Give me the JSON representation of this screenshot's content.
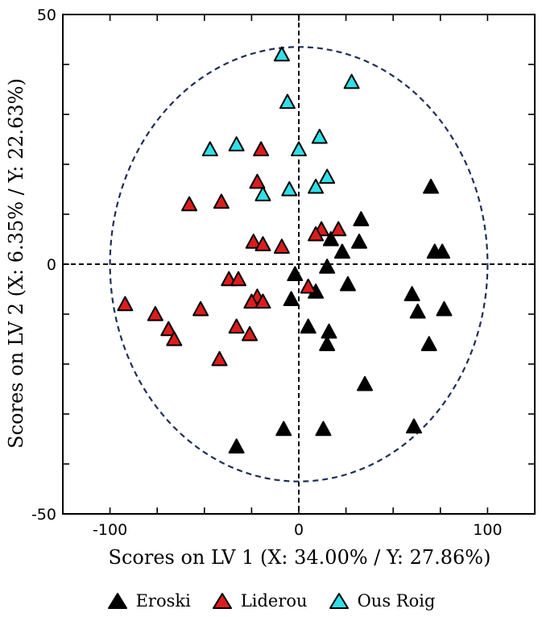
{
  "chart_data": {
    "type": "scatter",
    "xlabel": "Scores on LV 1 (X: 34.00% / Y: 27.86%)",
    "ylabel": "Scores on LV 2 (X: 6.35% / Y: 22.63%)",
    "xlim": [
      -125,
      125
    ],
    "ylim": [
      -50,
      50
    ],
    "xticks": [
      -100,
      0,
      100
    ],
    "yticks": [
      -50,
      0,
      50
    ],
    "x_tick_labels": [
      "-100",
      "0",
      "100"
    ],
    "y_tick_labels": [
      "-50",
      "0",
      "50"
    ],
    "confidence_ellipse": {
      "center": [
        0,
        0
      ],
      "x_radius": 100,
      "y_radius": 43.5,
      "style": "dashed",
      "color": "#1f2f57"
    },
    "reference_lines": {
      "x": 0,
      "y": 0,
      "style": "dashed"
    },
    "grid": false,
    "legend_position": "bottom",
    "series": [
      {
        "name": "Eroski",
        "color": "#000000",
        "marker": "triangle",
        "points": [
          [
            70,
            15.5
          ],
          [
            72,
            2.5
          ],
          [
            76,
            2.5
          ],
          [
            33,
            9
          ],
          [
            32,
            4.5
          ],
          [
            23,
            2.5
          ],
          [
            17,
            5
          ],
          [
            15,
            -0.5
          ],
          [
            26,
            -4
          ],
          [
            -2,
            -2
          ],
          [
            9,
            -5.5
          ],
          [
            -4,
            -7
          ],
          [
            60,
            -6
          ],
          [
            63,
            -9.5
          ],
          [
            77,
            -9
          ],
          [
            5,
            -12.5
          ],
          [
            16,
            -13.5
          ],
          [
            15,
            -16
          ],
          [
            69,
            -16
          ],
          [
            35,
            -24
          ],
          [
            -8,
            -33
          ],
          [
            13,
            -33
          ],
          [
            61,
            -32.5
          ],
          [
            -33,
            -36.5
          ]
        ]
      },
      {
        "name": "Liderou",
        "color": "#dd1c1c",
        "marker": "triangle",
        "points": [
          [
            -20,
            23
          ],
          [
            -22,
            16.5
          ],
          [
            -41,
            12.5
          ],
          [
            -58,
            12
          ],
          [
            -24,
            4.5
          ],
          [
            -19,
            4
          ],
          [
            -9,
            3.5
          ],
          [
            12,
            7
          ],
          [
            21,
            7
          ],
          [
            9,
            6
          ],
          [
            -37,
            -3
          ],
          [
            -32,
            -3
          ],
          [
            -22,
            -6.5
          ],
          [
            -25,
            -7.5
          ],
          [
            -19,
            -7.5
          ],
          [
            5,
            -4.5
          ],
          [
            -92,
            -8
          ],
          [
            -76,
            -10
          ],
          [
            -52,
            -9
          ],
          [
            -69,
            -13
          ],
          [
            -66,
            -15
          ],
          [
            -33,
            -12.5
          ],
          [
            -26,
            -14
          ],
          [
            -42,
            -19
          ]
        ]
      },
      {
        "name": "Ous Roig",
        "color": "#2fe0e8",
        "marker": "triangle",
        "points": [
          [
            -9,
            42
          ],
          [
            28,
            36.5
          ],
          [
            -6,
            32.5
          ],
          [
            -33,
            24
          ],
          [
            -47,
            23
          ],
          [
            11,
            25.5
          ],
          [
            0,
            23
          ],
          [
            15,
            17.5
          ],
          [
            9,
            15.5
          ],
          [
            -5,
            15
          ],
          [
            -19,
            14
          ]
        ]
      }
    ]
  }
}
